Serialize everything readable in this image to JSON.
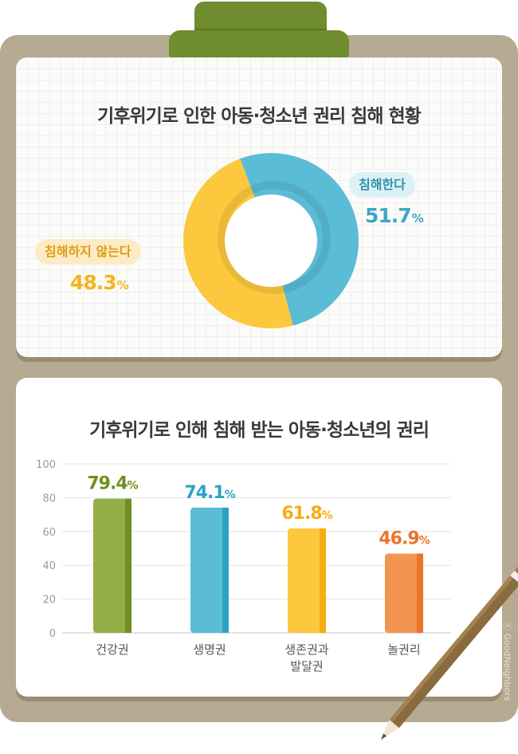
{
  "donut_section": {
    "title": "기후위기로 인한 아동·청소년 권리 침해 현황",
    "labels": [
      {
        "label": "침해한다",
        "value_text": "51.7",
        "unit": "%"
      },
      {
        "label": "침해하지 않는다",
        "value_text": "48.3",
        "unit": "%"
      }
    ]
  },
  "bar_section": {
    "title": "기후위기로 인해 침해 받는 아동·청소년의 권리",
    "y_ticks": [
      "100",
      "80",
      "60",
      "40",
      "20",
      "0"
    ],
    "value_labels": [
      {
        "value": "79.4",
        "unit": "%"
      },
      {
        "value": "74.1",
        "unit": "%"
      },
      {
        "value": "61.8",
        "unit": "%"
      },
      {
        "value": "46.9",
        "unit": "%"
      }
    ],
    "category_labels": [
      [
        "건강권"
      ],
      [
        "생명권"
      ],
      [
        "생존권과",
        "발달권"
      ],
      [
        "놀권리"
      ]
    ]
  },
  "copyright": "ⓒ GoodNeighbors",
  "colors": {
    "board": "#b7aa92",
    "clip": "#6f8c2f",
    "blue": "#5bbcd6",
    "yellow": "#fcc83d",
    "green": "#94ae47",
    "orange": "#f29552"
  },
  "chart_data": [
    {
      "type": "pie",
      "title": "기후위기로 인한 아동·청소년 권리 침해 현황",
      "categories": [
        "침해한다",
        "침해하지 않는다"
      ],
      "values": [
        51.7,
        48.3
      ],
      "colors": [
        "#5bbcd6",
        "#fcc83d"
      ],
      "donut": true
    },
    {
      "type": "bar",
      "title": "기후위기로 인해 침해 받는 아동·청소년의 권리",
      "categories": [
        "건강권",
        "생명권",
        "생존권과 발달권",
        "놀권리"
      ],
      "values": [
        79.4,
        74.1,
        61.8,
        46.9
      ],
      "colors": [
        "#94ae47",
        "#5bbcd6",
        "#fcc83d",
        "#f29552"
      ],
      "ylim": [
        0,
        100
      ],
      "yticks": [
        0,
        20,
        40,
        60,
        80,
        100
      ],
      "grid": true,
      "legend": "none"
    }
  ]
}
